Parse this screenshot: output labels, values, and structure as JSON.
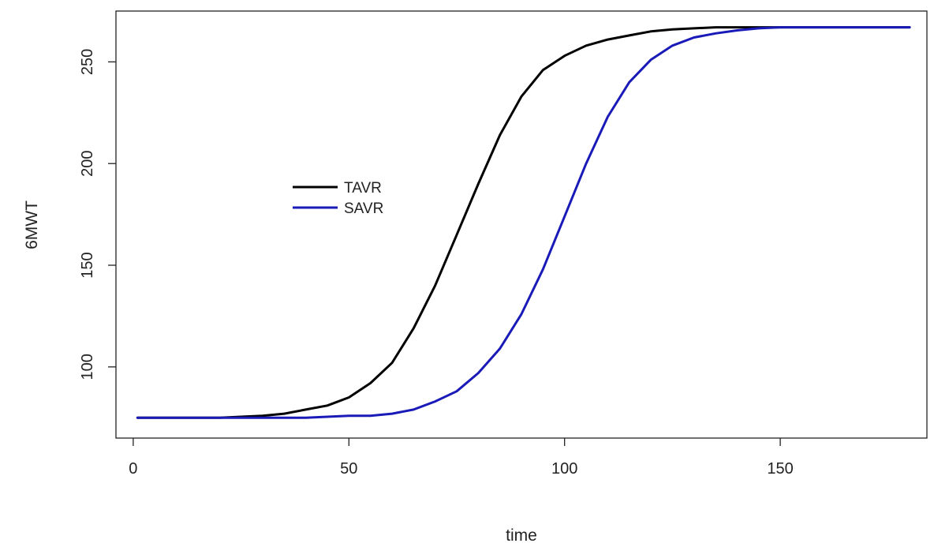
{
  "chart_data": {
    "type": "line",
    "title": "",
    "xlabel": "time",
    "ylabel": "6MWT",
    "xlim": [
      -4,
      184
    ],
    "ylim": [
      65,
      275
    ],
    "x_ticks": [
      0,
      50,
      100,
      150
    ],
    "y_ticks": [
      100,
      150,
      200,
      250
    ],
    "grid": false,
    "legend_position": "center-left",
    "series": [
      {
        "name": "TAVR",
        "color": "#000000",
        "x": [
          1,
          10,
          20,
          30,
          35,
          40,
          45,
          50,
          55,
          60,
          65,
          70,
          75,
          80,
          85,
          90,
          95,
          100,
          105,
          110,
          115,
          120,
          125,
          130,
          135,
          140,
          150,
          160,
          170,
          180
        ],
        "y": [
          75,
          75,
          75,
          76,
          77,
          79,
          81,
          85,
          92,
          102,
          119,
          140,
          165,
          190,
          214,
          233,
          246,
          253,
          258,
          261,
          263,
          265,
          266,
          266.5,
          267,
          267,
          267,
          267,
          267,
          267
        ]
      },
      {
        "name": "SAVR",
        "color": "#1a1ab8",
        "x": [
          1,
          10,
          20,
          30,
          40,
          50,
          55,
          60,
          65,
          70,
          75,
          80,
          85,
          90,
          95,
          100,
          105,
          110,
          115,
          120,
          125,
          130,
          135,
          140,
          145,
          150,
          160,
          170,
          180
        ],
        "y": [
          75,
          75,
          75,
          75,
          75,
          76,
          76,
          77,
          79,
          83,
          88,
          97,
          109,
          126,
          148,
          174,
          200,
          223,
          240,
          251,
          258,
          262,
          264,
          265.5,
          266.5,
          267,
          267,
          267,
          267
        ]
      }
    ]
  }
}
